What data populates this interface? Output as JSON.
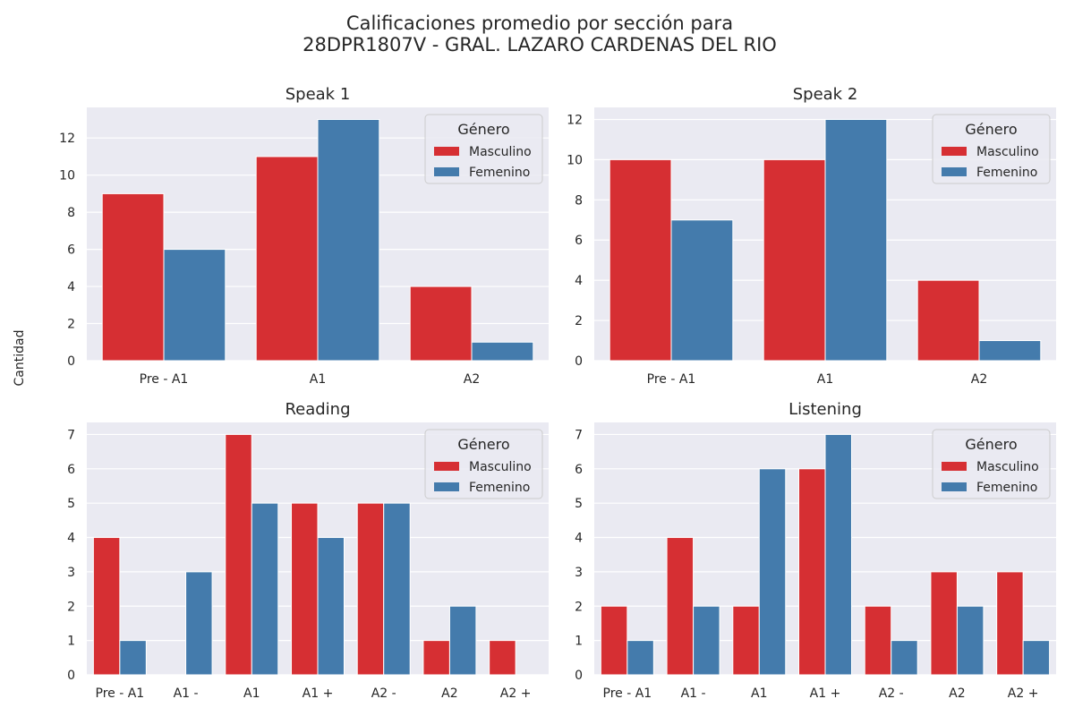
{
  "figure": {
    "title_line1": "Calificaciones promedio por sección para",
    "title_line2": "28DPR1807V - GRAL. LAZARO CARDENAS DEL RIO",
    "ylabel": "Cantidad"
  },
  "colors": {
    "Masculino": "#d62f33",
    "Femenino": "#447bac",
    "background": "#eaeaf2",
    "grid": "#ffffff"
  },
  "chart_data": [
    {
      "type": "bar",
      "title": "Speak 1",
      "categories": [
        "Pre - A1",
        "A1",
        "A2"
      ],
      "series": [
        {
          "name": "Masculino",
          "values": [
            9,
            11,
            4
          ]
        },
        {
          "name": "Femenino",
          "values": [
            6,
            13,
            1
          ]
        }
      ],
      "ylim": [
        0,
        13.65
      ],
      "yticks": [
        0,
        2,
        4,
        6,
        8,
        10,
        12
      ],
      "legend": {
        "title": "Género",
        "position": "top-right"
      },
      "grid": true
    },
    {
      "type": "bar",
      "title": "Speak 2",
      "categories": [
        "Pre - A1",
        "A1",
        "A2"
      ],
      "series": [
        {
          "name": "Masculino",
          "values": [
            10,
            10,
            4
          ]
        },
        {
          "name": "Femenino",
          "values": [
            7,
            12,
            1
          ]
        }
      ],
      "ylim": [
        0,
        12.6
      ],
      "yticks": [
        0,
        2,
        4,
        6,
        8,
        10,
        12
      ],
      "legend": {
        "title": "Género",
        "position": "top-right"
      },
      "grid": true
    },
    {
      "type": "bar",
      "title": "Reading",
      "categories": [
        "Pre - A1",
        "A1 -",
        "A1",
        "A1 +",
        "A2 -",
        "A2",
        "A2 +"
      ],
      "series": [
        {
          "name": "Masculino",
          "values": [
            4,
            0,
            7,
            5,
            5,
            1,
            1
          ]
        },
        {
          "name": "Femenino",
          "values": [
            1,
            3,
            5,
            4,
            5,
            2,
            0
          ]
        }
      ],
      "ylim": [
        0,
        7.35
      ],
      "yticks": [
        0,
        1,
        2,
        3,
        4,
        5,
        6,
        7
      ],
      "legend": {
        "title": "Género",
        "position": "top-right"
      },
      "grid": true
    },
    {
      "type": "bar",
      "title": "Listening",
      "categories": [
        "Pre - A1",
        "A1 -",
        "A1",
        "A1 +",
        "A2 -",
        "A2",
        "A2 +"
      ],
      "series": [
        {
          "name": "Masculino",
          "values": [
            2,
            4,
            2,
            6,
            2,
            3,
            3
          ]
        },
        {
          "name": "Femenino",
          "values": [
            1,
            2,
            6,
            7,
            1,
            2,
            1
          ]
        }
      ],
      "ylim": [
        0,
        7.35
      ],
      "yticks": [
        0,
        1,
        2,
        3,
        4,
        5,
        6,
        7
      ],
      "legend": {
        "title": "Género",
        "position": "top-right"
      },
      "grid": true
    }
  ]
}
